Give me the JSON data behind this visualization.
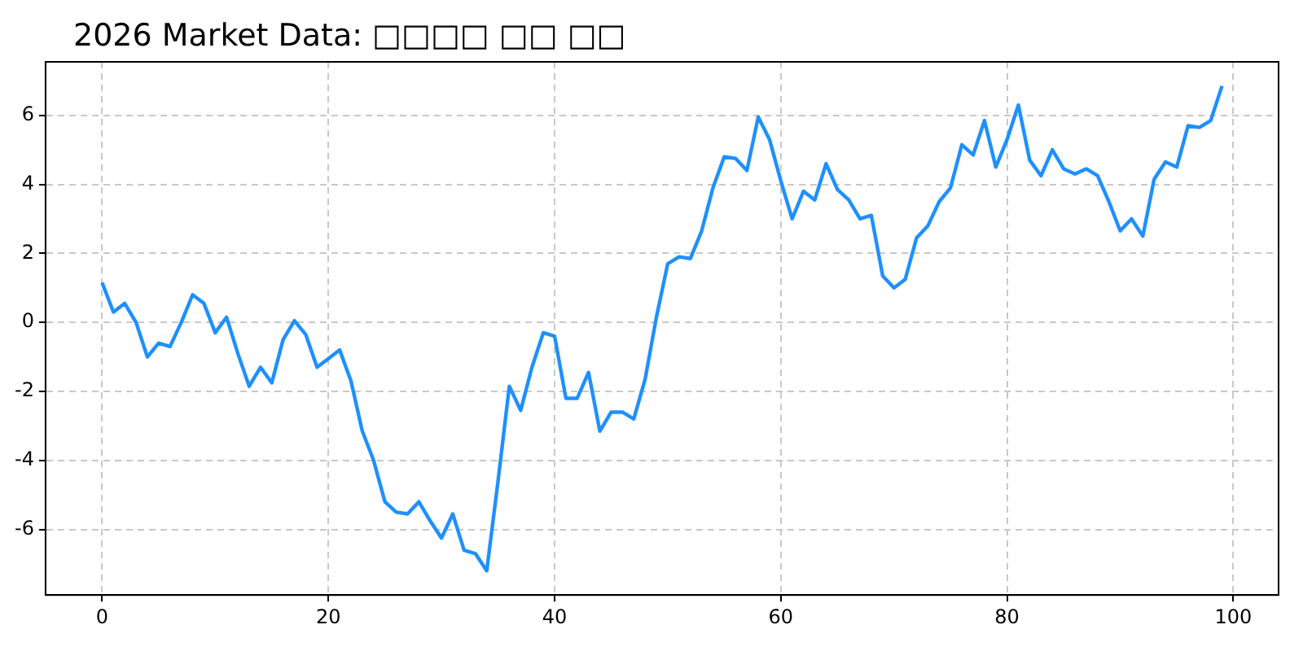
{
  "chart_data": {
    "type": "line",
    "title": "2026 Market Data: □□□□ □□ □□",
    "x": [
      0,
      1,
      2,
      3,
      4,
      5,
      6,
      7,
      8,
      9,
      10,
      11,
      12,
      13,
      14,
      15,
      16,
      17,
      18,
      19,
      20,
      21,
      22,
      23,
      24,
      25,
      26,
      27,
      28,
      29,
      30,
      31,
      32,
      33,
      34,
      35,
      36,
      37,
      38,
      39,
      40,
      41,
      42,
      43,
      44,
      45,
      46,
      47,
      48,
      49,
      50,
      51,
      52,
      53,
      54,
      55,
      56,
      57,
      58,
      59,
      60,
      61,
      62,
      63,
      64,
      65,
      66,
      67,
      68,
      69,
      70,
      71,
      72,
      73,
      74,
      75,
      76,
      77,
      78,
      79,
      80,
      81,
      82,
      83,
      84,
      85,
      86,
      87,
      88,
      89,
      90,
      91,
      92,
      93,
      94,
      95,
      96,
      97,
      98,
      99
    ],
    "series": [
      {
        "color": "#1e90ff",
        "values": [
          1.15,
          0.3,
          0.55,
          0.0,
          -1.0,
          -0.6,
          -0.7,
          0.0,
          0.8,
          0.55,
          -0.3,
          0.15,
          -0.9,
          -1.85,
          -1.3,
          -1.75,
          -0.5,
          0.05,
          -0.35,
          -1.3,
          -1.05,
          -0.8,
          -1.7,
          -3.15,
          -4.0,
          -5.2,
          -5.5,
          -5.55,
          -5.2,
          -5.75,
          -6.25,
          -5.55,
          -6.6,
          -6.7,
          -7.2,
          -4.6,
          -1.85,
          -2.55,
          -1.3,
          -0.3,
          -0.4,
          -2.2,
          -2.2,
          -1.45,
          -3.15,
          -2.6,
          -2.6,
          -2.8,
          -1.65,
          0.15,
          1.7,
          1.9,
          1.85,
          2.65,
          3.9,
          4.8,
          4.75,
          4.4,
          5.95,
          5.3,
          4.1,
          3.0,
          3.8,
          3.55,
          4.6,
          3.85,
          3.55,
          3.0,
          3.1,
          1.35,
          1.0,
          1.25,
          2.45,
          2.8,
          3.5,
          3.9,
          5.15,
          4.85,
          5.85,
          4.5,
          5.3,
          6.3,
          4.7,
          4.25,
          5.0,
          4.45,
          4.3,
          4.45,
          4.25,
          3.5,
          2.65,
          3.0,
          2.5,
          4.15,
          4.65,
          4.5,
          5.7,
          5.65,
          5.85,
          6.85
        ]
      }
    ],
    "xlim": [
      -5,
      104
    ],
    "ylim": [
      -7.9,
      7.55
    ],
    "xticks": [
      0,
      20,
      40,
      60,
      80,
      100
    ],
    "yticks": [
      -6,
      -4,
      -2,
      0,
      2,
      4,
      6
    ],
    "grid": true,
    "marker": "none",
    "line_style": "solid"
  }
}
